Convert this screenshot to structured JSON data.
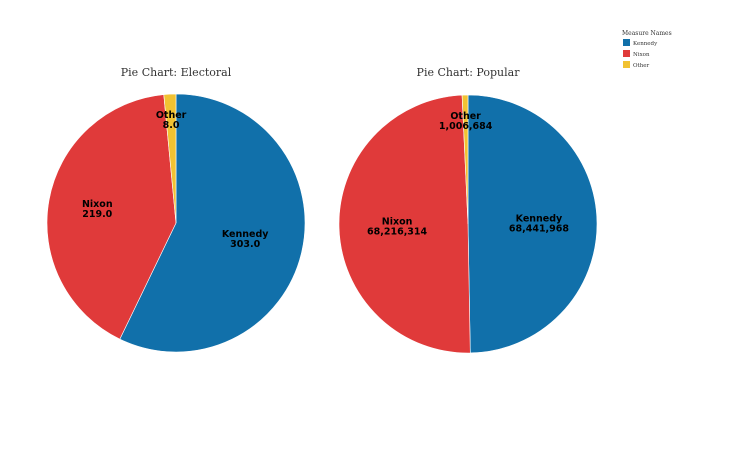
{
  "legend": {
    "title": "Measure Names",
    "entries": [
      {
        "name": "Kennedy",
        "color": "#1170aa"
      },
      {
        "name": "Nixon",
        "color": "#e03a3a"
      },
      {
        "name": "Other",
        "color": "#f1c232"
      }
    ]
  },
  "chart_data": [
    {
      "type": "pie",
      "title": "Pie Chart: Electoral",
      "slices": [
        {
          "name": "Kennedy",
          "value": 303.0,
          "label": "303.0",
          "color": "#1170aa"
        },
        {
          "name": "Nixon",
          "value": 219.0,
          "label": "219.0",
          "color": "#e03a3a"
        },
        {
          "name": "Other",
          "value": 8.0,
          "label": "8.0",
          "color": "#f1c232"
        }
      ]
    },
    {
      "type": "pie",
      "title": "Pie Chart: Popular",
      "slices": [
        {
          "name": "Kennedy",
          "value": 68441968,
          "label": "68,441,968",
          "color": "#1170aa"
        },
        {
          "name": "Nixon",
          "value": 68216314,
          "label": "68,216,314",
          "color": "#e03a3a"
        },
        {
          "name": "Other",
          "value": 1006684,
          "label": "1,006,684",
          "color": "#f1c232"
        }
      ]
    }
  ]
}
